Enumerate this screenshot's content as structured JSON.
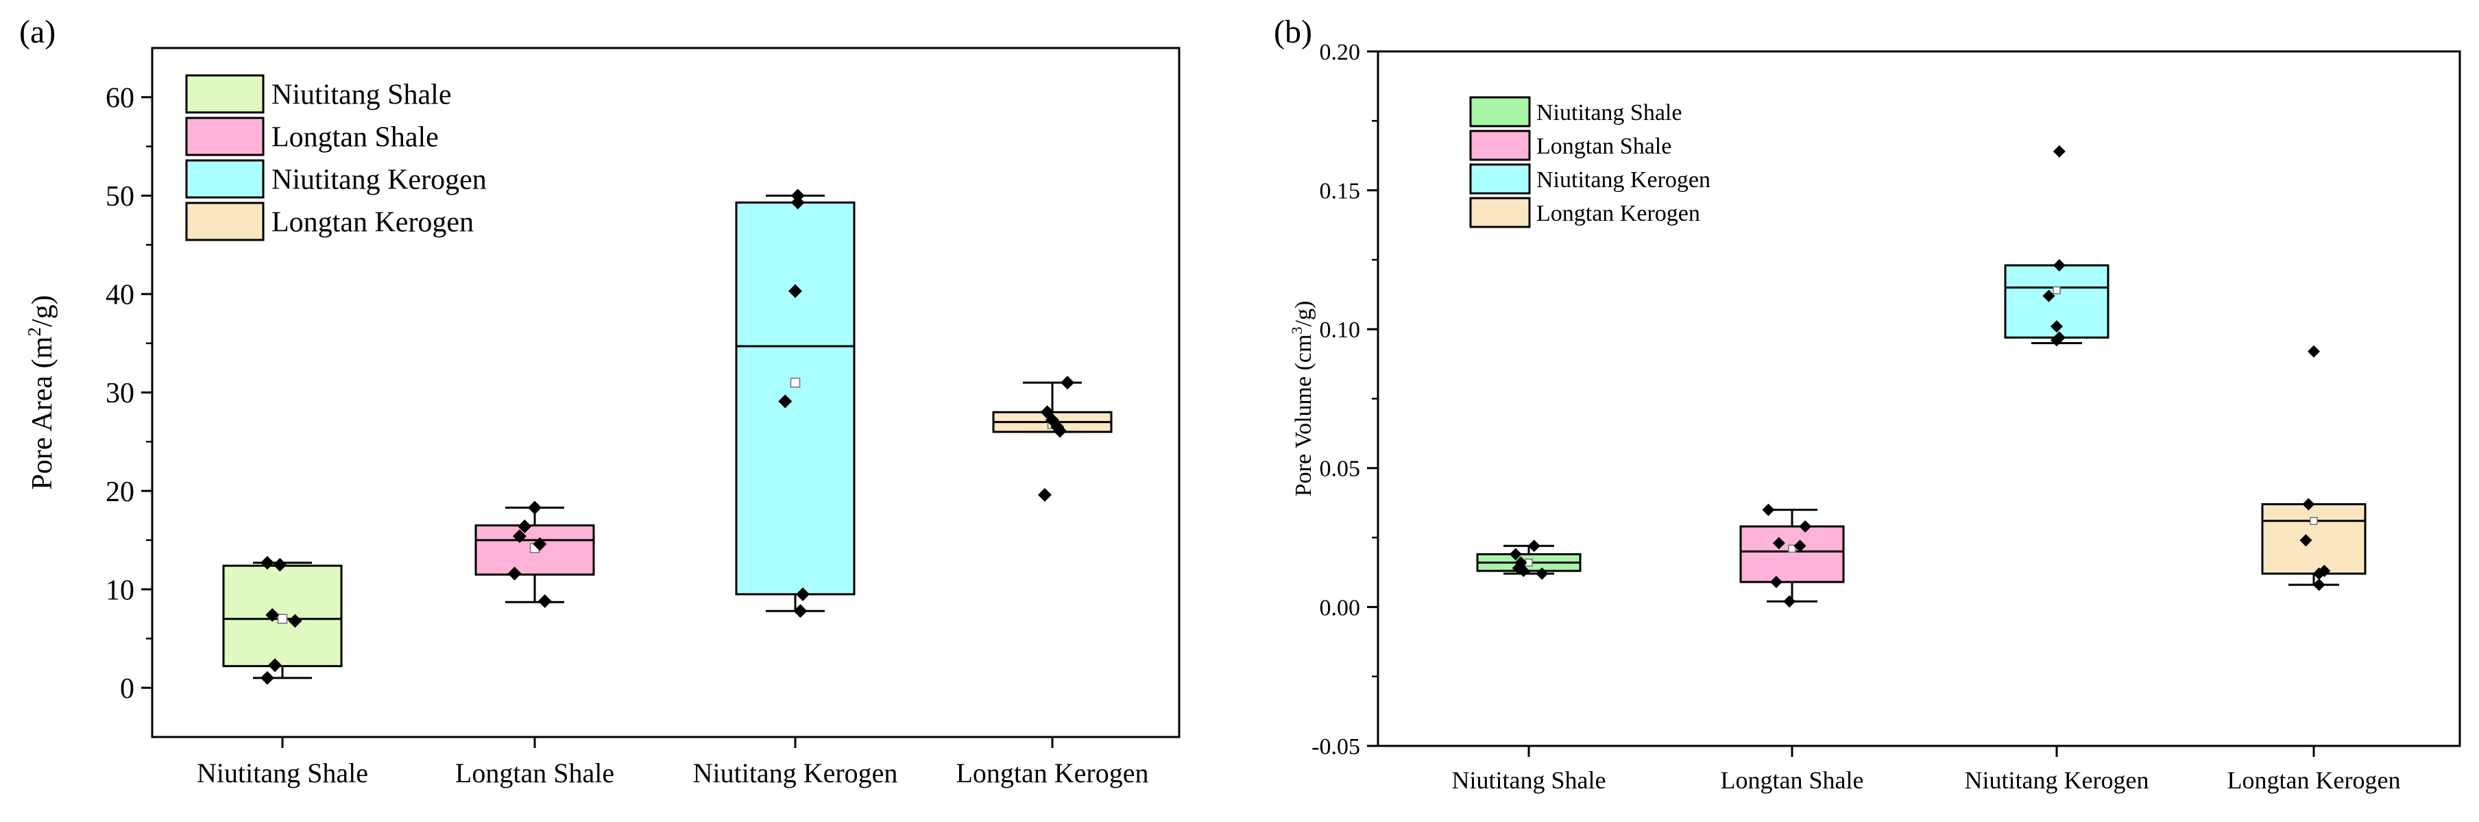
{
  "chart_data": [
    {
      "panel_label": "(a)",
      "type": "box",
      "ylabel": "Pore Area (m",
      "ylabel_sup": "2",
      "ylabel_tail": "/g)",
      "ylim": [
        -5,
        65
      ],
      "yticks": [
        0,
        10,
        20,
        30,
        40,
        50,
        60
      ],
      "ytick_labels": [
        "0",
        "10",
        "20",
        "30",
        "40",
        "50",
        "60"
      ],
      "categories": [
        "Niutitang Shale",
        "Longtan Shale",
        "Niutitang Kerogen",
        "Longtan Kerogen"
      ],
      "colors": [
        "#E0F9C0",
        "#FFB3D9",
        "#ABFFFF",
        "#FAE6C0"
      ],
      "legend": [
        "Niutitang Shale",
        "Longtan Shale",
        "Niutitang Kerogen",
        "Longtan Kerogen"
      ],
      "boxes": [
        {
          "q1": 2.2,
          "median": 7.0,
          "q3": 12.4,
          "whisker_low": 1.0,
          "whisker_high": 12.7,
          "mean": 7.0,
          "points": [
            [
              -0.06,
              12.7
            ],
            [
              -0.01,
              12.5
            ],
            [
              -0.04,
              7.4
            ],
            [
              0.05,
              6.8
            ],
            [
              -0.03,
              2.3
            ],
            [
              -0.06,
              1.0
            ]
          ]
        },
        {
          "q1": 11.5,
          "median": 15.0,
          "q3": 16.5,
          "whisker_low": 8.7,
          "whisker_high": 18.3,
          "mean": 14.2,
          "points": [
            [
              0.0,
              18.3
            ],
            [
              -0.04,
              16.4
            ],
            [
              -0.06,
              15.4
            ],
            [
              0.02,
              14.6
            ],
            [
              -0.08,
              11.6
            ],
            [
              0.04,
              8.8
            ]
          ]
        },
        {
          "q1": 9.5,
          "median": 34.7,
          "q3": 49.3,
          "whisker_low": 7.8,
          "whisker_high": 50.0,
          "mean": 31.0,
          "points": [
            [
              0.01,
              50.0
            ],
            [
              0.01,
              49.3
            ],
            [
              0.0,
              40.3
            ],
            [
              -0.04,
              29.1
            ],
            [
              0.03,
              9.5
            ],
            [
              0.02,
              7.8
            ]
          ]
        },
        {
          "q1": 26.0,
          "median": 27.0,
          "q3": 28.0,
          "whisker_low": 26.0,
          "whisker_high": 31.0,
          "mean": 26.8,
          "points": [
            [
              0.06,
              31.0
            ],
            [
              -0.02,
              28.0
            ],
            [
              0.0,
              27.2
            ],
            [
              0.02,
              26.5
            ],
            [
              0.03,
              26.1
            ],
            [
              -0.03,
              19.6
            ]
          ]
        }
      ]
    },
    {
      "panel_label": "(b)",
      "type": "box",
      "ylabel": "Pore Volume (cm",
      "ylabel_sup": "3",
      "ylabel_tail": "/g)",
      "ylim": [
        -0.05,
        0.2
      ],
      "yticks": [
        -0.05,
        0.0,
        0.05,
        0.1,
        0.15,
        0.2
      ],
      "ytick_labels": [
        "-0.05",
        "0.00",
        "0.05",
        "0.10",
        "0.15",
        "0.20"
      ],
      "categories": [
        "Niutitang Shale",
        "Longtan Shale",
        "Niutitang Kerogen",
        "Longtan Kerogen"
      ],
      "colors": [
        "#A8F5A8",
        "#FFB3D9",
        "#ABFFFF",
        "#FAE6C0"
      ],
      "legend": [
        "Niutitang Shale",
        "Longtan Shale",
        "Niutitang Kerogen",
        "Longtan Kerogen"
      ],
      "boxes": [
        {
          "q1": 0.013,
          "median": 0.016,
          "q3": 0.019,
          "whisker_low": 0.012,
          "whisker_high": 0.022,
          "mean": 0.016,
          "points": [
            [
              0.02,
              0.022
            ],
            [
              -0.05,
              0.019
            ],
            [
              -0.03,
              0.016
            ],
            [
              -0.04,
              0.014
            ],
            [
              -0.02,
              0.013
            ],
            [
              0.05,
              0.012
            ]
          ]
        },
        {
          "q1": 0.009,
          "median": 0.02,
          "q3": 0.029,
          "whisker_low": 0.002,
          "whisker_high": 0.035,
          "mean": 0.021,
          "points": [
            [
              -0.09,
              0.035
            ],
            [
              0.05,
              0.029
            ],
            [
              -0.05,
              0.023
            ],
            [
              0.03,
              0.022
            ],
            [
              -0.06,
              0.009
            ],
            [
              -0.01,
              0.002
            ]
          ]
        },
        {
          "q1": 0.097,
          "median": 0.115,
          "q3": 0.123,
          "whisker_low": 0.095,
          "whisker_high": 0.123,
          "mean": 0.114,
          "points": [
            [
              0.01,
              0.164
            ],
            [
              0.01,
              0.123
            ],
            [
              -0.03,
              0.112
            ],
            [
              0.0,
              0.101
            ],
            [
              0.01,
              0.097
            ],
            [
              0.0,
              0.096
            ]
          ]
        },
        {
          "q1": 0.012,
          "median": 0.031,
          "q3": 0.037,
          "whisker_low": 0.008,
          "whisker_high": 0.037,
          "mean": 0.031,
          "points": [
            [
              0.0,
              0.092
            ],
            [
              -0.02,
              0.037
            ],
            [
              -0.03,
              0.024
            ],
            [
              0.04,
              0.013
            ],
            [
              0.02,
              0.012
            ],
            [
              0.02,
              0.008
            ]
          ]
        }
      ]
    }
  ]
}
